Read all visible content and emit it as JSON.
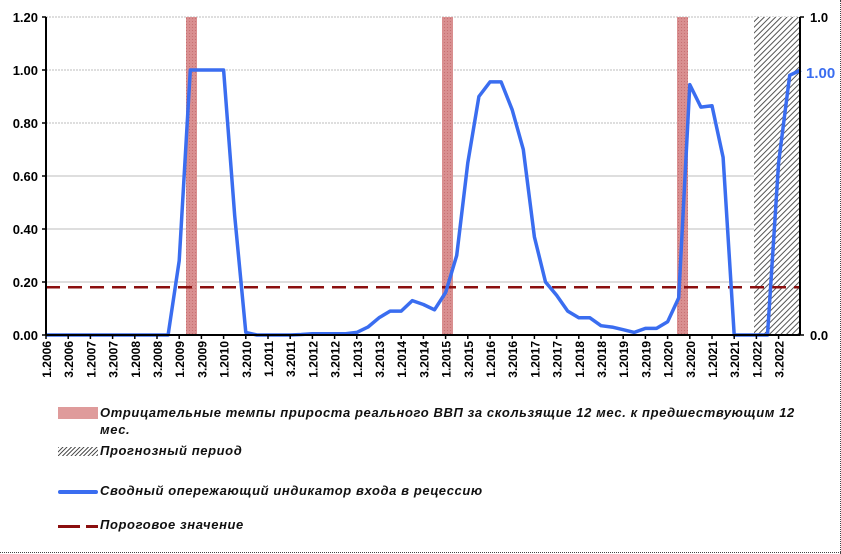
{
  "chart_data": {
    "type": "line",
    "title": "",
    "xlabel": "",
    "ylabel": "",
    "ylim": [
      0,
      1.2
    ],
    "y_ticks": [
      "0.00",
      "0.20",
      "0.40",
      "0.60",
      "0.80",
      "1.00",
      "1.20"
    ],
    "y2_ticks": [
      "0.0",
      "1.0"
    ],
    "y2lim": [
      0,
      1.0
    ],
    "grid": true,
    "x_tick_labels": [
      "1.2006",
      "3.2006",
      "1.2007",
      "3.2007",
      "1.2008",
      "3.2008",
      "1.2009",
      "3.2009",
      "1.2010",
      "3.2010",
      "1.2011",
      "3.2011",
      "1.2012",
      "3.2012",
      "1.2013",
      "3.2013",
      "1.2014",
      "3.2014",
      "1.2015",
      "3.2015",
      "1.2016",
      "3.2016",
      "1.2017",
      "3.2017",
      "1.2018",
      "3.2018",
      "1.2019",
      "3.2019",
      "1.2020",
      "3.2020",
      "1.2021",
      "3.2021",
      "1.2022",
      "3.2022"
    ],
    "series": [
      {
        "name": "Сводный опережающий индикатор входа в рецессию",
        "color": "#3a6df0",
        "values": [
          0,
          0,
          0,
          0,
          0,
          0,
          0,
          0,
          0,
          0,
          0,
          0,
          0.28,
          1.0,
          1.0,
          1.0,
          1.0,
          0.45,
          0.01,
          0,
          0,
          0,
          0,
          0.002,
          0.005,
          0.005,
          0.005,
          0.005,
          0.01,
          0.03,
          0.065,
          0.09,
          0.09,
          0.13,
          0.115,
          0.095,
          0.16,
          0.3,
          0.65,
          0.9,
          0.955,
          0.955,
          0.85,
          0.7,
          0.37,
          0.2,
          0.15,
          0.09,
          0.065,
          0.065,
          0.035,
          0.03,
          0.02,
          0.01,
          0.025,
          0.025,
          0.05,
          0.14,
          0.945,
          0.86,
          0.865,
          0.67,
          0,
          0,
          0,
          0,
          0.65,
          0.98,
          1.0
        ]
      },
      {
        "name": "Пороговое значение",
        "color": "#8b0f0f",
        "style": "dashed",
        "value": 0.18
      }
    ],
    "shaded_regions": [
      {
        "name": "Отрицательные темпы прироста реального ВВП за скользящие 12 мес. к предшествующим 12 мес.",
        "periods": [
          "2009 Q2-Q3",
          "2015 Q1-Q2",
          "2020 Q2-Q3"
        ]
      },
      {
        "name": "Прогнозный период",
        "periods": [
          "2022 Q1 - 2022 Q4"
        ]
      }
    ],
    "annotations": [
      {
        "text": "1.00",
        "color": "#3a6df0",
        "position": "right end of indicator line"
      }
    ],
    "legend_position": "bottom"
  },
  "legend": {
    "items": [
      {
        "label": "Отрицательные темпы прироста реального ВВП за скользящие 12 мес. к предшествующим 12 мес."
      },
      {
        "label": "Прогнозный период"
      },
      {
        "label": "Сводный опережающий индикатор входа в рецессию"
      },
      {
        "label": "Пороговое значение"
      }
    ]
  },
  "end_label": "1.00"
}
